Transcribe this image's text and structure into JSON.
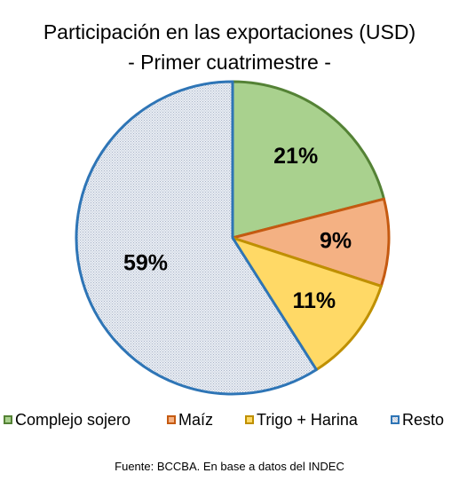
{
  "title": {
    "line1": "Participación en las exportaciones (USD)",
    "line2": "- Primer cuatrimestre -"
  },
  "source": "Fuente: BCCBA. En base a datos del INDEC",
  "chart_data": {
    "type": "pie",
    "title": "Participación en las exportaciones (USD) - Primer cuatrimestre -",
    "start_angle_deg": 0,
    "direction": "clockwise",
    "legend_position": "bottom",
    "slices": [
      {
        "label": "Complejo sojero",
        "value": 21,
        "display": "21%",
        "fill": "#a9d18e",
        "stroke": "#548235",
        "pattern": false
      },
      {
        "label": "Maíz",
        "value": 9,
        "display": "9%",
        "fill": "#f4b183",
        "stroke": "#c55a11",
        "pattern": false
      },
      {
        "label": "Trigo + Harina",
        "value": 11,
        "display": "11%",
        "fill": "#ffd966",
        "stroke": "#bf9000",
        "pattern": false
      },
      {
        "label": "Resto",
        "value": 59,
        "display": "59%",
        "fill": "#dae3f3",
        "stroke": "#2e75b6",
        "pattern": true
      }
    ]
  }
}
